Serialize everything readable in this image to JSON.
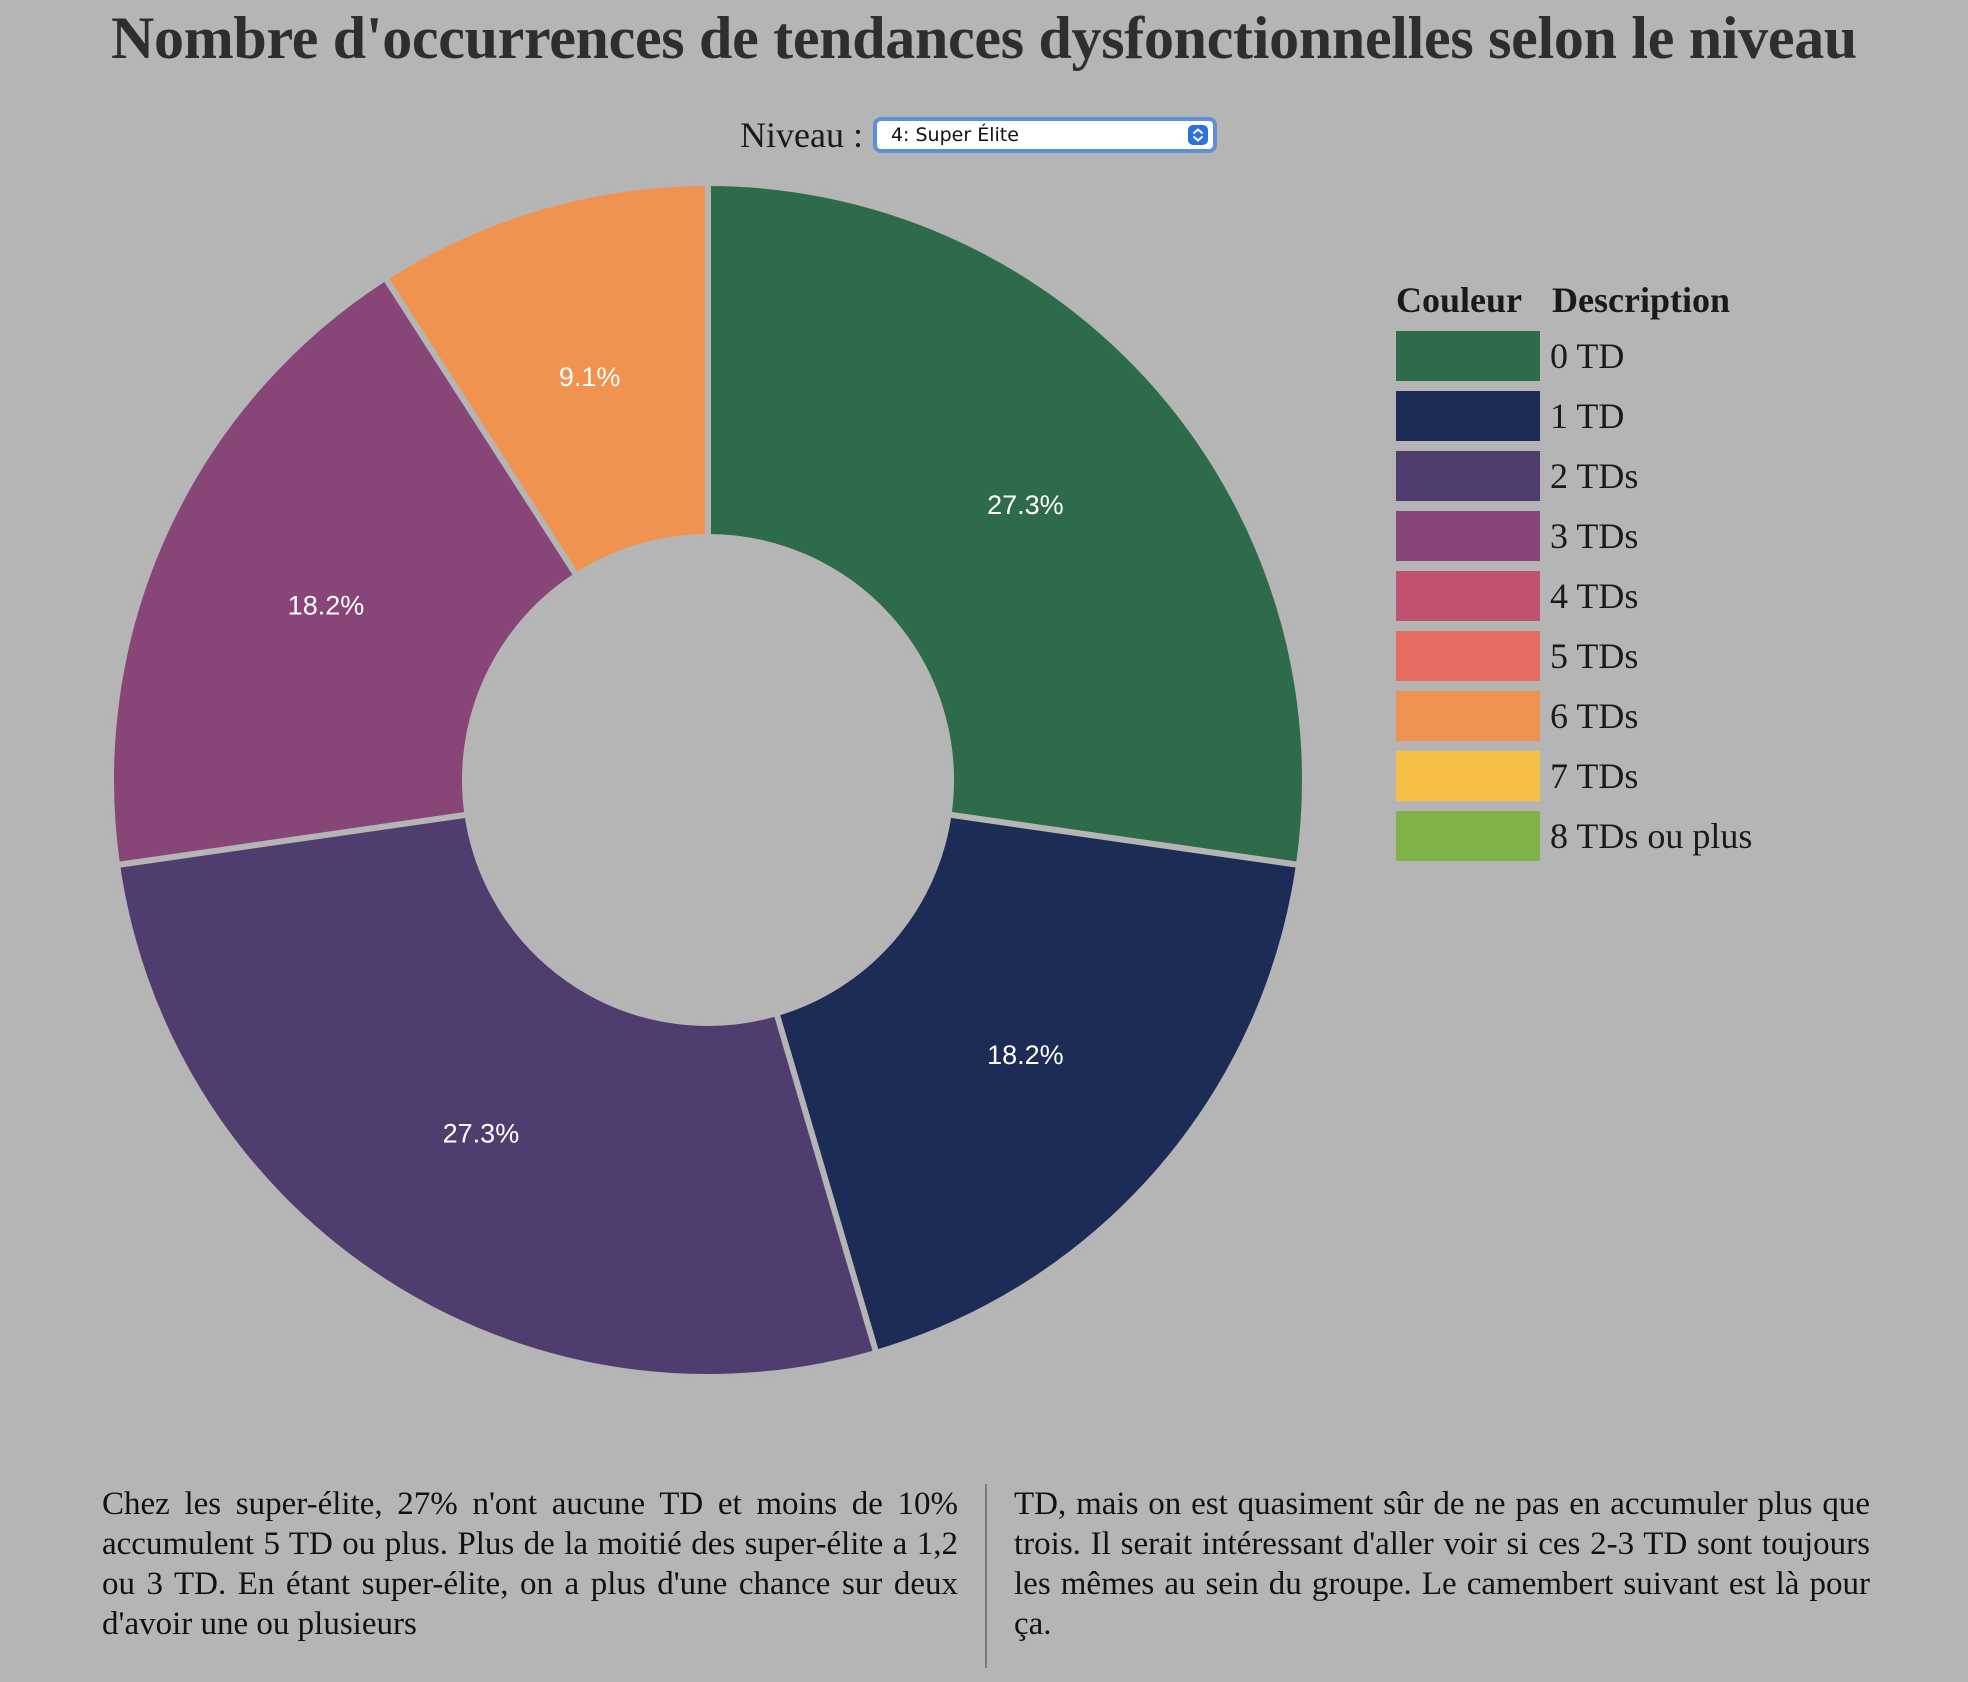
{
  "page": {
    "title": "Nombre d'occurrences de tendances dysfonctionnelles selon le niveau"
  },
  "level_selector": {
    "label": "Niveau :",
    "selected": "4: Super Élite"
  },
  "legend": {
    "header_color": "Couleur",
    "header_description": "Description",
    "items": [
      {
        "label": "0 TD",
        "color": "#2e6b4b"
      },
      {
        "label": "1 TD",
        "color": "#1c2c56"
      },
      {
        "label": "2 TDs",
        "color": "#4f3d70"
      },
      {
        "label": "3 TDs",
        "color": "#874578"
      },
      {
        "label": "4 TDs",
        "color": "#c05270"
      },
      {
        "label": "5 TDs",
        "color": "#e56d63"
      },
      {
        "label": "6 TDs",
        "color": "#f09350"
      },
      {
        "label": "7 TDs",
        "color": "#f7c044"
      },
      {
        "label": "8 TDs ou plus",
        "color": "#80b34a"
      }
    ]
  },
  "chart_data": {
    "type": "pie",
    "donut": true,
    "legend_position": "right",
    "slices": [
      {
        "label": "0 TD",
        "value": 27.3,
        "value_label": "27.3%",
        "color": "#2e6b4b"
      },
      {
        "label": "1 TD",
        "value": 18.2,
        "value_label": "18.2%",
        "color": "#1c2c56"
      },
      {
        "label": "2 TDs",
        "value": 27.3,
        "value_label": "27.3%",
        "color": "#4f3d70"
      },
      {
        "label": "3 TDs",
        "value": 18.2,
        "value_label": "18.2%",
        "color": "#874578"
      },
      {
        "label": "6 TDs",
        "value": 9.1,
        "value_label": "9.1%",
        "color": "#f09350"
      }
    ]
  },
  "description": {
    "column_1": "Chez les super-élite, 27% n'ont aucune TD et moins de 10% accumulent 5 TD ou plus. Plus de la moitié des super-élite a 1,2 ou 3 TD. En étant super-élite, on a plus d'une chance sur deux d'avoir une ou plusieurs",
    "column_2": "TD, mais on est quasiment sûr de ne pas en accumuler plus que trois. Il serait intéressant d'aller voir si ces 2-3 TD sont toujours les mêmes au sein du groupe. Le camembert suivant est là pour ça."
  }
}
